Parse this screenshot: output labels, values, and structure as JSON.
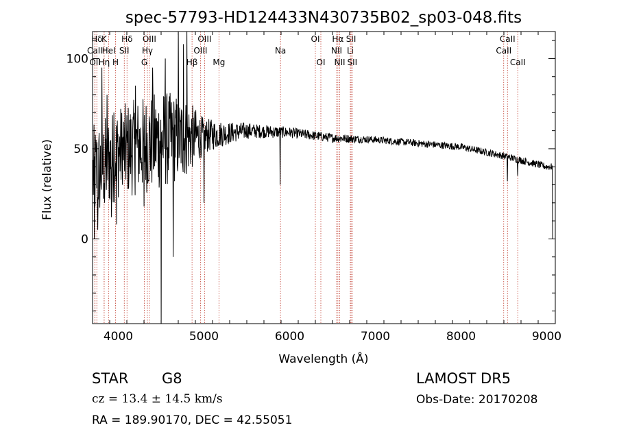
{
  "chart_data": {
    "type": "line",
    "title": "spec-57793-HD124433N430735B02_sp03-048.fits",
    "xlabel": "Wavelength (Å)",
    "ylabel": "Flux (relative)",
    "xlim": [
      3700,
      9100
    ],
    "ylim": [
      -47,
      115
    ],
    "xticks": [
      4000,
      5000,
      6000,
      7000,
      8000,
      9000
    ],
    "yticks": [
      0,
      50,
      100
    ],
    "lines": [
      {
        "name": "Hδ",
        "x": 3750,
        "row": 0
      },
      {
        "name": "K",
        "x": 3835,
        "row": 0
      },
      {
        "name": "Hδ",
        "x": 4102,
        "row": 0
      },
      {
        "name": "OIII",
        "x": 4363,
        "row": 0
      },
      {
        "name": "OIII",
        "x": 5007,
        "row": 0
      },
      {
        "name": "OI",
        "x": 6300,
        "row": 0
      },
      {
        "name": "Hα",
        "x": 6563,
        "row": 0
      },
      {
        "name": "SII",
        "x": 6717,
        "row": 0
      },
      {
        "name": "CaII",
        "x": 8542,
        "row": 0
      },
      {
        "name": "CaII",
        "x": 3727,
        "row": 1
      },
      {
        "name": "HeI",
        "x": 3889,
        "row": 1
      },
      {
        "name": "SII",
        "x": 4070,
        "row": 1
      },
      {
        "name": "Hγ",
        "x": 4340,
        "row": 1
      },
      {
        "name": "OIII",
        "x": 4959,
        "row": 1
      },
      {
        "name": "Na",
        "x": 5893,
        "row": 1
      },
      {
        "name": "NII",
        "x": 6548,
        "row": 1
      },
      {
        "name": "Li",
        "x": 6708,
        "row": 1
      },
      {
        "name": "CaII",
        "x": 8498,
        "row": 1
      },
      {
        "name": "OII",
        "x": 3729,
        "row": 2
      },
      {
        "name": "Hη",
        "x": 3835,
        "row": 2
      },
      {
        "name": "H",
        "x": 3968,
        "row": 2
      },
      {
        "name": "G",
        "x": 4304,
        "row": 2
      },
      {
        "name": "Hβ",
        "x": 4861,
        "row": 2
      },
      {
        "name": "Mg",
        "x": 5175,
        "row": 2
      },
      {
        "name": "OI",
        "x": 6364,
        "row": 2
      },
      {
        "name": "NII",
        "x": 6584,
        "row": 2
      },
      {
        "name": "SII",
        "x": 6731,
        "row": 2
      },
      {
        "name": "CaII",
        "x": 8662,
        "row": 2
      }
    ],
    "continuum": [
      [
        3700,
        35
      ],
      [
        4000,
        48
      ],
      [
        4500,
        55
      ],
      [
        5000,
        57
      ],
      [
        5500,
        60
      ],
      [
        6000,
        59
      ],
      [
        6500,
        56
      ],
      [
        7000,
        55
      ],
      [
        7500,
        53
      ],
      [
        8000,
        51
      ],
      [
        8500,
        46
      ],
      [
        9000,
        40
      ],
      [
        9070,
        40
      ]
    ],
    "noise": [
      [
        3700,
        28
      ],
      [
        4000,
        26
      ],
      [
        4500,
        28
      ],
      [
        4800,
        22
      ],
      [
        5000,
        10
      ],
      [
        5300,
        6
      ],
      [
        5600,
        4
      ],
      [
        6000,
        3
      ],
      [
        7000,
        2
      ],
      [
        9070,
        2
      ]
    ],
    "spikes": [
      [
        3720,
        0
      ],
      [
        3760,
        5
      ],
      [
        3780,
        25
      ],
      [
        3810,
        95
      ],
      [
        3840,
        20
      ],
      [
        3870,
        80
      ],
      [
        3920,
        12
      ],
      [
        3950,
        70
      ],
      [
        3980,
        8
      ],
      [
        4050,
        30
      ],
      [
        4200,
        85
      ],
      [
        4300,
        18
      ],
      [
        4400,
        95
      ],
      [
        4500,
        -47
      ],
      [
        4550,
        100
      ],
      [
        4640,
        -10
      ],
      [
        4700,
        115
      ],
      [
        4760,
        108
      ],
      [
        4800,
        115
      ],
      [
        5000,
        20
      ],
      [
        5890,
        30
      ],
      [
        8540,
        32
      ],
      [
        8660,
        35
      ],
      [
        9070,
        0
      ]
    ]
  },
  "info": {
    "class": "STAR",
    "subclass": "G8",
    "survey": "LAMOST DR5",
    "cz": "cz = 13.4 ± 14.5 km/s",
    "obsdate": "Obs-Date: 20170208",
    "radec": "RA = 189.90170, DEC =  42.55051"
  }
}
